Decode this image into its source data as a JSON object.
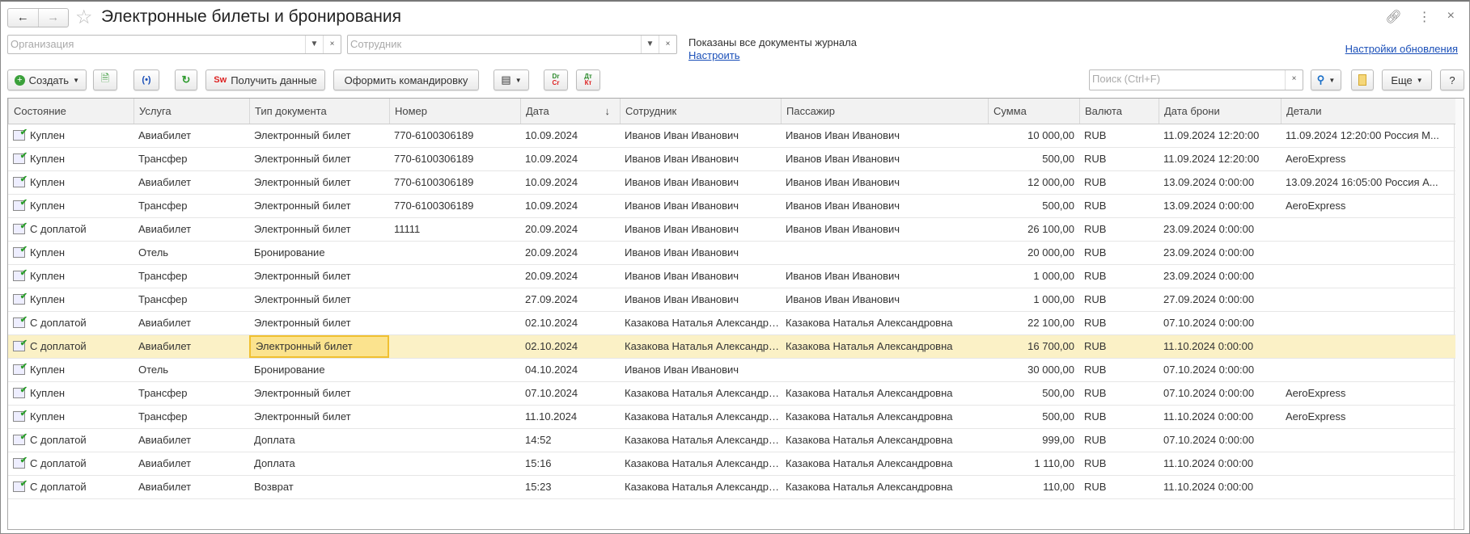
{
  "window": {
    "title": "Электронные билеты и бронирования"
  },
  "filters": {
    "organization_placeholder": "Организация",
    "employee_placeholder": "Сотрудник",
    "info_text": "Показаны все документы журнала",
    "configure_link": "Настроить",
    "update_settings_link": "Настройки обновления"
  },
  "toolbar": {
    "create": "Создать",
    "get_data": "Получить данные",
    "get_data_icon_text": "Sw",
    "business_trip": "Оформить командировку",
    "search_placeholder": "Поиск (Ctrl+F)",
    "more": "Еще",
    "help": "?"
  },
  "table": {
    "columns": [
      "Состояние",
      "Услуга",
      "Тип документа",
      "Номер",
      "Дата",
      "Сотрудник",
      "Пассажир",
      "Сумма",
      "Валюта",
      "Дата брони",
      "Детали"
    ],
    "sort_indicator": "↓",
    "selected_row": 9,
    "rows": [
      [
        "Куплен",
        "Авиабилет",
        "Электронный билет",
        "770-6100306189",
        "10.09.2024",
        "Иванов Иван Иванович",
        "Иванов Иван Иванович",
        "10 000,00",
        "RUB",
        "11.09.2024 12:20:00",
        "11.09.2024 12:20:00 Россия М..."
      ],
      [
        "Куплен",
        "Трансфер",
        "Электронный билет",
        "770-6100306189",
        "10.09.2024",
        "Иванов Иван Иванович",
        "Иванов Иван Иванович",
        "500,00",
        "RUB",
        "11.09.2024 12:20:00",
        "AeroExpress"
      ],
      [
        "Куплен",
        "Авиабилет",
        "Электронный билет",
        "770-6100306189",
        "10.09.2024",
        "Иванов Иван Иванович",
        "Иванов Иван Иванович",
        "12 000,00",
        "RUB",
        "13.09.2024 0:00:00",
        "13.09.2024 16:05:00 Россия А..."
      ],
      [
        "Куплен",
        "Трансфер",
        "Электронный билет",
        "770-6100306189",
        "10.09.2024",
        "Иванов Иван Иванович",
        "Иванов Иван Иванович",
        "500,00",
        "RUB",
        "13.09.2024 0:00:00",
        "AeroExpress"
      ],
      [
        "С доплатой",
        "Авиабилет",
        "Электронный билет",
        "11111",
        "20.09.2024",
        "Иванов Иван Иванович",
        "Иванов Иван Иванович",
        "26 100,00",
        "RUB",
        "23.09.2024 0:00:00",
        ""
      ],
      [
        "Куплен",
        "Отель",
        "Бронирование",
        "",
        "20.09.2024",
        "Иванов Иван Иванович",
        "",
        "20 000,00",
        "RUB",
        "23.09.2024 0:00:00",
        ""
      ],
      [
        "Куплен",
        "Трансфер",
        "Электронный билет",
        "",
        "20.09.2024",
        "Иванов Иван Иванович",
        "Иванов Иван Иванович",
        "1 000,00",
        "RUB",
        "23.09.2024 0:00:00",
        ""
      ],
      [
        "Куплен",
        "Трансфер",
        "Электронный билет",
        "",
        "27.09.2024",
        "Иванов Иван Иванович",
        "Иванов Иван Иванович",
        "1 000,00",
        "RUB",
        "27.09.2024 0:00:00",
        ""
      ],
      [
        "С доплатой",
        "Авиабилет",
        "Электронный билет",
        "",
        "02.10.2024",
        "Казакова Наталья Александровна",
        "Казакова Наталья Александровна",
        "22 100,00",
        "RUB",
        "07.10.2024 0:00:00",
        ""
      ],
      [
        "С доплатой",
        "Авиабилет",
        "Электронный билет",
        "",
        "02.10.2024",
        "Казакова Наталья Александровна",
        "Казакова Наталья Александровна",
        "16 700,00",
        "RUB",
        "11.10.2024 0:00:00",
        ""
      ],
      [
        "Куплен",
        "Отель",
        "Бронирование",
        "",
        "04.10.2024",
        "Иванов Иван Иванович",
        "",
        "30 000,00",
        "RUB",
        "07.10.2024 0:00:00",
        ""
      ],
      [
        "Куплен",
        "Трансфер",
        "Электронный билет",
        "",
        "07.10.2024",
        "Казакова Наталья Александровна",
        "Казакова Наталья Александровна",
        "500,00",
        "RUB",
        "07.10.2024 0:00:00",
        "AeroExpress"
      ],
      [
        "Куплен",
        "Трансфер",
        "Электронный билет",
        "",
        "11.10.2024",
        "Казакова Наталья Александровна",
        "Казакова Наталья Александровна",
        "500,00",
        "RUB",
        "11.10.2024 0:00:00",
        "AeroExpress"
      ],
      [
        "С доплатой",
        "Авиабилет",
        "Доплата",
        "",
        "14:52",
        "Казакова Наталья Александровна",
        "Казакова Наталья Александровна",
        "999,00",
        "RUB",
        "07.10.2024 0:00:00",
        ""
      ],
      [
        "С доплатой",
        "Авиабилет",
        "Доплата",
        "",
        "15:16",
        "Казакова Наталья Александровна",
        "Казакова Наталья Александровна",
        "1 110,00",
        "RUB",
        "11.10.2024 0:00:00",
        ""
      ],
      [
        "С доплатой",
        "Авиабилет",
        "Возврат",
        "",
        "15:23",
        "Казакова Наталья Александровна",
        "Казакова Наталья Александровна",
        "110,00",
        "RUB",
        "11.10.2024 0:00:00",
        ""
      ]
    ]
  },
  "colors": {
    "selected_row": "#fbf1c6",
    "selected_cell": "#fbe38e",
    "link": "#1a4fb8"
  }
}
